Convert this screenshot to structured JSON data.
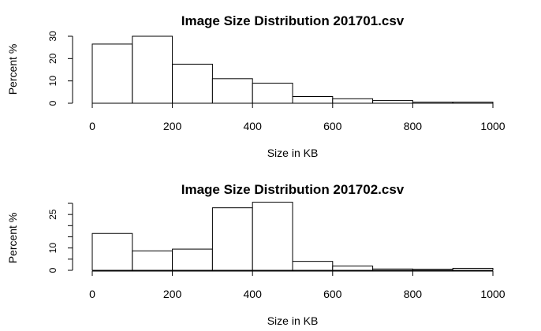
{
  "chart_data": [
    {
      "type": "bar",
      "title": "Image Size Distribution 201701.csv",
      "xlabel": "Size in KB",
      "ylabel": "Percent %",
      "bin_edges": [
        0,
        100,
        200,
        300,
        400,
        500,
        600,
        700,
        800,
        900,
        1000
      ],
      "values": [
        26.5,
        30,
        17.5,
        11,
        9,
        3,
        2,
        1.2,
        0.5,
        0.5
      ],
      "xticks": [
        0,
        200,
        400,
        600,
        800,
        1000
      ],
      "yticks": [
        0,
        10,
        20,
        30
      ],
      "xlim": [
        0,
        1000
      ],
      "ylim": [
        0,
        30
      ],
      "grid": false
    },
    {
      "type": "bar",
      "title": "Image Size Distribution 201702.csv",
      "xlabel": "Size in KB",
      "ylabel": "Percent %",
      "bin_edges": [
        0,
        100,
        200,
        300,
        400,
        500,
        600,
        700,
        800,
        900,
        1000
      ],
      "values": [
        16.5,
        8.7,
        9.5,
        28,
        30.5,
        4,
        1.9,
        0.6,
        0.5,
        0.9
      ],
      "xticks": [
        0,
        200,
        400,
        600,
        800,
        1000
      ],
      "yticks": [
        0,
        10,
        25
      ],
      "yminor_ticks": [
        5,
        15,
        20,
        30
      ],
      "xlim": [
        0,
        1000
      ],
      "ylim": [
        0,
        30
      ],
      "grid": false
    }
  ]
}
